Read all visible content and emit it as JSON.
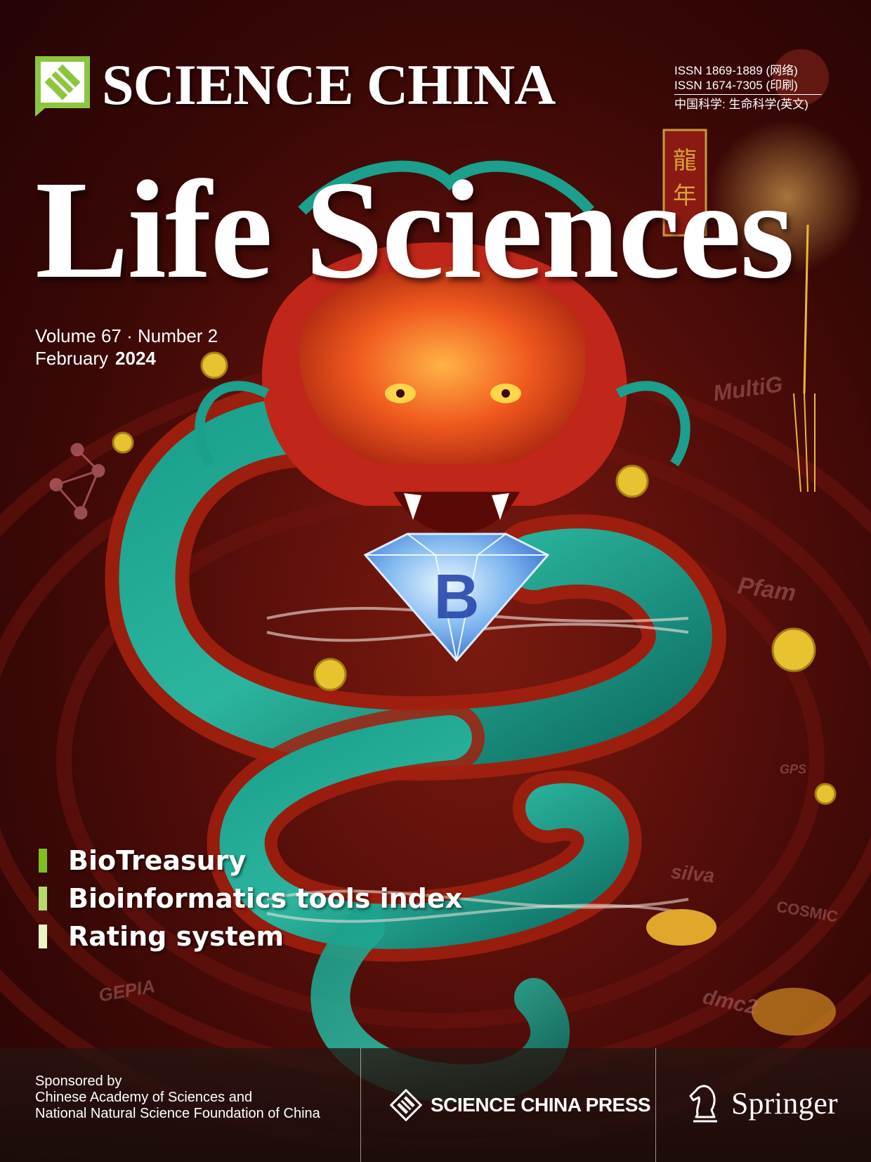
{
  "masthead": {
    "name": "SCIENCE CHINA",
    "issn_online": "ISSN  1869-1889 (网络)",
    "issn_print": "ISSN  1674-7305 (印刷)",
    "chinese_title": "中国科学: 生命科学(英文)"
  },
  "journal": {
    "title": "Life Sciences",
    "volume_line": "Volume 67 · Number 2",
    "month": "February",
    "year": "2024"
  },
  "highlights": [
    {
      "text": "BioTreasury"
    },
    {
      "text": "Bioinformatics tools index"
    },
    {
      "text": "Rating system"
    }
  ],
  "artwork": {
    "subject": "red and teal Chinese dragon holding a blue diamond, wrapped with DNA strands",
    "background_labels": [
      "MultiG",
      "Pfam",
      "GPS",
      "silva",
      "COSMIC",
      "GEPIA",
      "dmc2"
    ],
    "banner_chars": [
      "龍",
      "年"
    ]
  },
  "footer": {
    "sponsored_by": "Sponsored by",
    "sponsor_1": "Chinese Academy of Sciences and",
    "sponsor_2": "National Natural Science Foundation of China",
    "publisher": "SCIENCE CHINA PRESS",
    "partner": "Springer"
  },
  "colors": {
    "accent_green": "#8cc63f",
    "background_red": "#5a0f0a",
    "text": "#ffffff"
  }
}
